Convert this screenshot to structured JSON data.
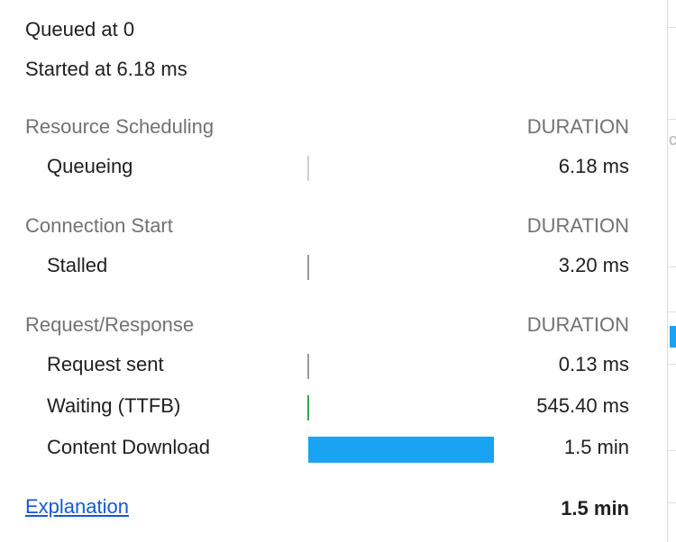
{
  "header": {
    "queued": "Queued at 0",
    "started": "Started at 6.18 ms"
  },
  "sections": [
    {
      "title": "Resource Scheduling",
      "duration_label": "DURATION",
      "rows": [
        {
          "label": "Queueing",
          "value": "6.18 ms",
          "bar_color": "#cfcfcf",
          "bar_fraction": 0.0
        }
      ]
    },
    {
      "title": "Connection Start",
      "duration_label": "DURATION",
      "rows": [
        {
          "label": "Stalled",
          "value": "3.20 ms",
          "bar_color": "#9a9a9a",
          "bar_fraction": 0.0
        }
      ]
    },
    {
      "title": "Request/Response",
      "duration_label": "DURATION",
      "rows": [
        {
          "label": "Request sent",
          "value": "0.13 ms",
          "bar_color": "#9a9a9a",
          "bar_fraction": 0.0
        },
        {
          "label": "Waiting (TTFB)",
          "value": "545.40 ms",
          "bar_color": "#2fa84f",
          "bar_fraction": 0.0
        },
        {
          "label": "Content Download",
          "value": "1.5 min",
          "bar_color": "#1aa3f2",
          "bar_fraction": 0.98
        }
      ]
    }
  ],
  "footer": {
    "explanation_link": "Explanation",
    "total": "1.5 min"
  }
}
